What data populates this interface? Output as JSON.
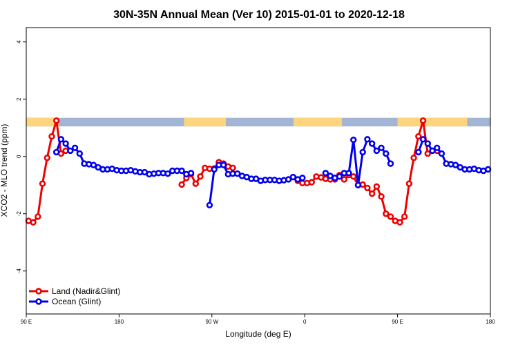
{
  "chart_data": {
    "type": "line",
    "title": "30N-35N Annual Mean (Ver 10)   2015-01-01 to 2020-12-18",
    "xlabel": "Longitude (deg E)",
    "ylabel": "XCO2 - MLO trend (ppm)",
    "xlim": [
      90,
      590
    ],
    "ylim": [
      -5.5,
      4.5
    ],
    "x_ticks": [
      {
        "value": 90,
        "label": "90 E"
      },
      {
        "value": 190,
        "label": "180"
      },
      {
        "value": 290,
        "label": "90 W"
      },
      {
        "value": 390,
        "label": "0"
      },
      {
        "value": 490,
        "label": "90 E"
      },
      {
        "value": 590,
        "label": "180"
      }
    ],
    "y_ticks": [
      {
        "value": -4,
        "label": "-4"
      },
      {
        "value": -2,
        "label": "-2"
      },
      {
        "value": 0,
        "label": "0"
      },
      {
        "value": 2,
        "label": "2"
      },
      {
        "value": 4,
        "label": "4"
      }
    ],
    "grid": false,
    "legend_position": "bottom-left",
    "landmask": {
      "y_range": [
        1.05,
        1.35
      ],
      "ocean_color": "#a2b5d5",
      "land_color": "#fcd57c",
      "land_segments": [
        [
          90,
          125
        ],
        [
          260,
          305
        ],
        [
          378,
          430
        ],
        [
          490,
          565
        ]
      ]
    },
    "series": [
      {
        "name": "Land (Nadir&Glint)",
        "color": "#ee0000",
        "segments": [
          {
            "x": [
              92.5,
              97.5,
              102.5,
              107.5,
              112.5,
              117.5,
              122.5,
              127.5,
              132.5
            ],
            "y": [
              -2.25,
              -2.3,
              -2.1,
              -0.95,
              -0.05,
              0.7,
              1.25,
              0.1,
              0.2
            ]
          },
          {
            "x": [
              257.5,
              262.5,
              267.5,
              272.5,
              277.5,
              282.5,
              287.5,
              292.5,
              297.5,
              302.5,
              307.5,
              312.5
            ],
            "y": [
              -0.98,
              -0.75,
              -0.62,
              -0.95,
              -0.7,
              -0.4,
              -0.43,
              -0.42,
              -0.2,
              -0.25,
              -0.35,
              -0.4
            ]
          },
          {
            "x": [
              382.5,
              387.5,
              392.5,
              397.5,
              402.5,
              407.5,
              412.5,
              417.5,
              422.5,
              427.5,
              432.5,
              437.5,
              442.5,
              447.5,
              452.5,
              457.5,
              462.5,
              467.5,
              472.5,
              477.5,
              482.5,
              487.5,
              492.5,
              497.5,
              502.5,
              507.5,
              512.5,
              517.5,
              522.5,
              527.5,
              532.5
            ],
            "y": [
              -0.85,
              -0.93,
              -0.93,
              -0.9,
              -0.7,
              -0.73,
              -0.78,
              -0.8,
              -0.8,
              -0.65,
              -0.8,
              -0.65,
              -0.7,
              -1.0,
              -0.98,
              -1.1,
              -1.3,
              -1.05,
              -1.4,
              -2.0,
              -2.1,
              -2.25,
              -2.3,
              -2.1,
              -0.95,
              -0.05,
              0.7,
              1.25,
              0.1,
              0.2,
              0.2
            ]
          }
        ]
      },
      {
        "name": "Ocean (Glint)",
        "color": "#0000ee",
        "segments": [
          {
            "x": [
              122.5,
              127.5,
              132.5,
              137.5,
              142.5,
              147.5,
              152.5,
              157.5,
              162.5,
              167.5,
              172.5,
              177.5,
              182.5,
              187.5,
              192.5,
              197.5,
              202.5,
              207.5,
              212.5,
              217.5,
              222.5,
              227.5,
              232.5,
              237.5,
              242.5,
              247.5,
              252.5,
              257.5,
              262.5,
              267.5
            ],
            "y": [
              0.15,
              0.6,
              0.45,
              0.2,
              0.3,
              0.1,
              -0.25,
              -0.27,
              -0.3,
              -0.38,
              -0.45,
              -0.45,
              -0.43,
              -0.48,
              -0.5,
              -0.5,
              -0.48,
              -0.52,
              -0.55,
              -0.55,
              -0.62,
              -0.6,
              -0.58,
              -0.58,
              -0.6,
              -0.5,
              -0.5,
              -0.5,
              -0.62,
              -0.58
            ]
          },
          {
            "x": [
              287.5,
              292.5,
              297.5,
              302.5,
              307.5,
              312.5,
              317.5,
              322.5,
              327.5,
              332.5,
              337.5,
              342.5,
              347.5,
              352.5,
              357.5,
              362.5,
              367.5,
              372.5,
              377.5,
              382.5,
              387.5
            ],
            "y": [
              -1.7,
              -0.45,
              -0.3,
              -0.3,
              -0.62,
              -0.6,
              -0.6,
              -0.68,
              -0.72,
              -0.78,
              -0.78,
              -0.85,
              -0.82,
              -0.82,
              -0.82,
              -0.85,
              -0.83,
              -0.8,
              -0.72,
              -0.8,
              -0.75
            ]
          },
          {
            "x": [
              412.5,
              417.5,
              422.5,
              427.5,
              432.5,
              437.5,
              442.5,
              447.5,
              452.5,
              457.5,
              462.5,
              467.5,
              472.5,
              477.5,
              482.5
            ],
            "y": [
              -0.58,
              -0.68,
              -0.75,
              -0.7,
              -0.58,
              -0.58,
              0.58,
              -1.0,
              0.15,
              0.6,
              0.45,
              0.2,
              0.3,
              0.1,
              -0.25
            ]
          },
          {
            "x": [
              512.5,
              517.5,
              522.5,
              527.5,
              532.5,
              537.5,
              542.5,
              547.5,
              552.5,
              557.5,
              562.5,
              567.5,
              572.5,
              577.5,
              582.5,
              587.5
            ],
            "y": [
              0.15,
              0.6,
              0.45,
              0.2,
              0.3,
              0.1,
              -0.25,
              -0.27,
              -0.3,
              -0.38,
              -0.45,
              -0.45,
              -0.43,
              -0.48,
              -0.5,
              -0.45
            ]
          }
        ]
      }
    ]
  }
}
